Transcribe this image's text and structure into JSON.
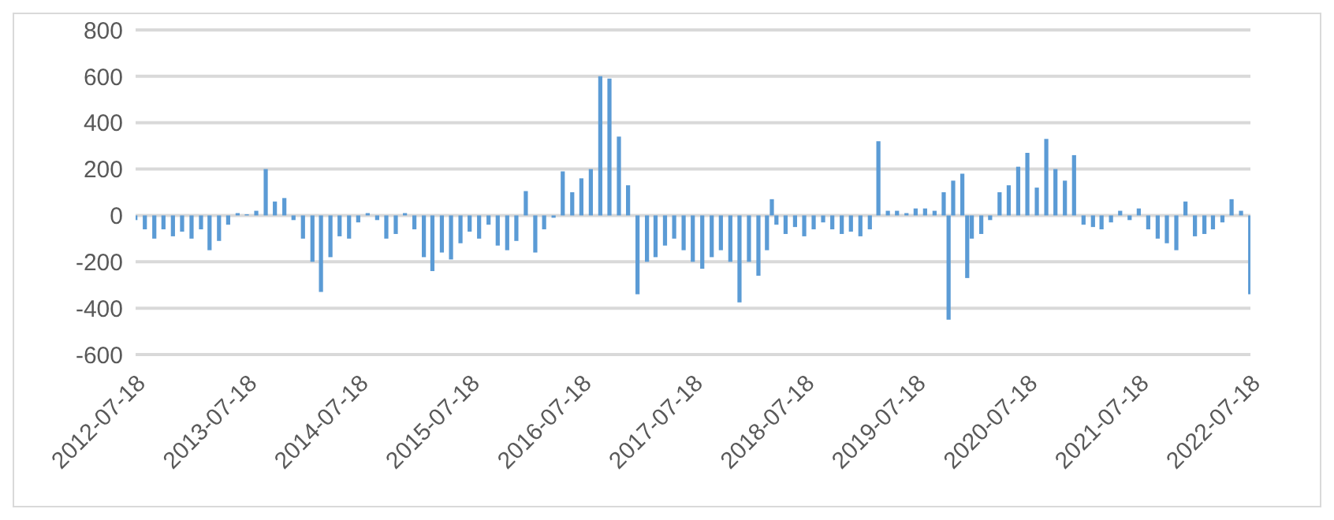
{
  "chart_data": {
    "type": "bar",
    "x": [
      "2012-07-18",
      "2012-08-18",
      "2012-09-18",
      "2012-10-18",
      "2012-11-18",
      "2012-12-18",
      "2013-01-18",
      "2013-02-18",
      "2013-03-18",
      "2013-04-18",
      "2013-05-18",
      "2013-06-18",
      "2013-07-18",
      "2013-08-18",
      "2013-09-18",
      "2013-10-18",
      "2013-11-18",
      "2013-12-18",
      "2014-01-18",
      "2014-02-18",
      "2014-03-18",
      "2014-04-18",
      "2014-05-18",
      "2014-06-18",
      "2014-07-18",
      "2014-08-18",
      "2014-09-18",
      "2014-10-18",
      "2014-11-18",
      "2014-12-18",
      "2015-01-18",
      "2015-02-18",
      "2015-03-18",
      "2015-04-18",
      "2015-05-18",
      "2015-06-18",
      "2015-07-18",
      "2015-08-18",
      "2015-09-18",
      "2015-10-18",
      "2015-11-18",
      "2015-12-18",
      "2016-01-18",
      "2016-02-18",
      "2016-03-18",
      "2016-04-18",
      "2016-05-18",
      "2016-06-18",
      "2016-07-18",
      "2016-08-18",
      "2016-09-18",
      "2016-10-18",
      "2016-11-18",
      "2016-12-18",
      "2017-01-18",
      "2017-02-18",
      "2017-03-18",
      "2017-04-18",
      "2017-05-18",
      "2017-06-18",
      "2017-07-18",
      "2017-08-18",
      "2017-09-18",
      "2017-10-18",
      "2017-11-18",
      "2017-12-18",
      "2018-01-18",
      "2018-02-18",
      "2018-03-18",
      "2018-04-03",
      "2018-04-18",
      "2018-05-18",
      "2018-06-18",
      "2018-07-18",
      "2018-08-18",
      "2018-09-18",
      "2018-10-18",
      "2018-11-18",
      "2018-12-18",
      "2019-01-18",
      "2019-02-18",
      "2019-03-18",
      "2019-04-18",
      "2019-05-18",
      "2019-06-18",
      "2019-07-18",
      "2019-08-18",
      "2019-09-18",
      "2019-10-18",
      "2019-11-03",
      "2019-11-18",
      "2019-12-18",
      "2020-01-03",
      "2020-01-18",
      "2020-02-18",
      "2020-03-18",
      "2020-04-18",
      "2020-05-18",
      "2020-06-18",
      "2020-07-18",
      "2020-08-18",
      "2020-09-18",
      "2020-10-18",
      "2020-11-18",
      "2020-12-18",
      "2021-01-18",
      "2021-02-18",
      "2021-03-18",
      "2021-04-18",
      "2021-05-18",
      "2021-06-18",
      "2021-07-18",
      "2021-08-18",
      "2021-09-18",
      "2021-10-18",
      "2021-11-18",
      "2021-12-18",
      "2022-01-18",
      "2022-02-18",
      "2022-03-18",
      "2022-04-18",
      "2022-05-18",
      "2022-06-18",
      "2022-07-18"
    ],
    "values": [
      -20,
      -60,
      -100,
      -60,
      -90,
      -70,
      -100,
      -60,
      -150,
      -110,
      -40,
      10,
      5,
      20,
      200,
      60,
      75,
      -20,
      -100,
      -200,
      -330,
      -180,
      -90,
      -100,
      -30,
      10,
      -20,
      -100,
      -80,
      10,
      -60,
      -180,
      -240,
      -160,
      -190,
      -120,
      -70,
      -100,
      -40,
      -130,
      -150,
      -110,
      105,
      -160,
      -60,
      -10,
      190,
      100,
      160,
      200,
      600,
      590,
      340,
      130,
      -340,
      -200,
      -180,
      -130,
      -100,
      -150,
      -200,
      -230,
      -180,
      -150,
      -200,
      -375,
      -200,
      -260,
      -150,
      70,
      -40,
      -80,
      -50,
      -90,
      -60,
      -30,
      -60,
      -80,
      -70,
      -90,
      -60,
      320,
      20,
      20,
      10,
      30,
      30,
      20,
      100,
      -450,
      150,
      180,
      -270,
      -100,
      -80,
      -20,
      100,
      130,
      210,
      270,
      120,
      330,
      200,
      150,
      260,
      -40,
      -50,
      -60,
      -30,
      20,
      -20,
      30,
      -60,
      -100,
      -120,
      -150,
      60,
      -90,
      -80,
      -60,
      -30,
      70,
      20,
      -340
    ],
    "color": "#5b9bd5",
    "xlim": [
      "2012-07-18",
      "2022-07-18"
    ],
    "xticks": [
      "2012-07-18",
      "2013-07-18",
      "2014-07-18",
      "2015-07-18",
      "2016-07-18",
      "2017-07-18",
      "2018-07-18",
      "2019-07-18",
      "2020-07-18",
      "2021-07-18",
      "2022-07-18"
    ],
    "ylim": [
      -600,
      800
    ],
    "yticks": [
      -600,
      -400,
      -200,
      0,
      200,
      400,
      600,
      800
    ],
    "grid": "y"
  }
}
